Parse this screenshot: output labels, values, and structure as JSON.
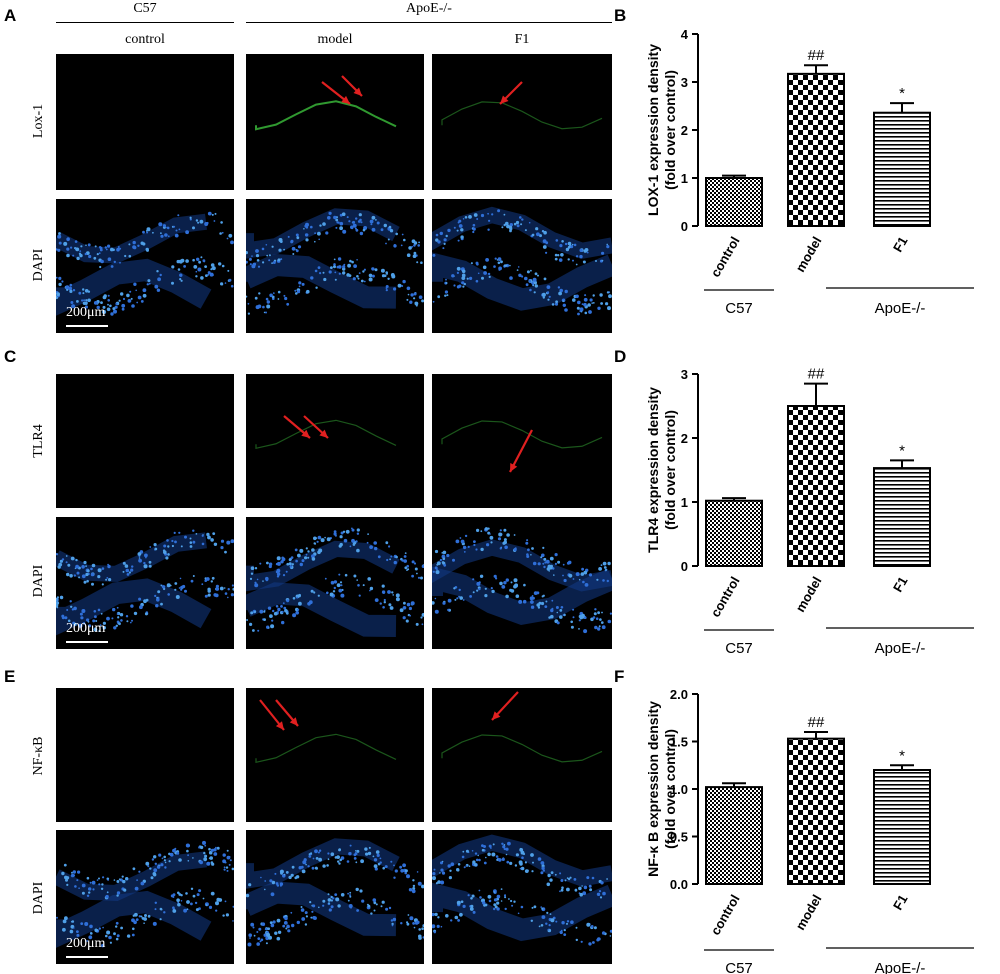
{
  "groups": {
    "c57": "C57",
    "apoe": "ApoE-/-",
    "control": "control",
    "model": "model",
    "f1": "F1"
  },
  "panels": {
    "A": "A",
    "B": "B",
    "C": "C",
    "D": "D",
    "E": "E",
    "F": "F"
  },
  "rows": {
    "lox1": "Lox-1",
    "tlr4": "TLR4",
    "nfkb": "NF-κB",
    "dapi": "DAPI"
  },
  "scale_label": "200μm",
  "colors": {
    "fluor_green": "#3cbf3c",
    "dapi_blue": "#2f6fd8",
    "arrow_red": "#e02020"
  },
  "chart_data": [
    {
      "type": "bar",
      "panel": "B",
      "categories": [
        "control",
        "model",
        "F1"
      ],
      "values": [
        1.0,
        3.17,
        2.36
      ],
      "errors": [
        0.05,
        0.18,
        0.2
      ],
      "annotations": [
        "",
        "##",
        "*"
      ],
      "ylabel": [
        "LOX-1 expression density",
        "(fold over control)"
      ],
      "ylim": [
        0,
        4
      ],
      "yticks": [
        "0",
        "1",
        "2",
        "3",
        "4"
      ],
      "ytick_values": [
        0,
        1,
        2,
        3,
        4
      ],
      "patterns": [
        "small-check",
        "large-check",
        "horizontal-lines"
      ],
      "group_labels": [
        "C57",
        "ApoE-/-"
      ]
    },
    {
      "type": "bar",
      "panel": "D",
      "categories": [
        "control",
        "model",
        "F1"
      ],
      "values": [
        1.02,
        2.5,
        1.53
      ],
      "errors": [
        0.04,
        0.35,
        0.12
      ],
      "annotations": [
        "",
        "##",
        "*"
      ],
      "ylabel": [
        "TLR4 expression density",
        "(fold over control)"
      ],
      "ylim": [
        0,
        3
      ],
      "yticks": [
        "0",
        "1",
        "2",
        "3"
      ],
      "ytick_values": [
        0,
        1,
        2,
        3
      ],
      "patterns": [
        "small-check",
        "large-check",
        "horizontal-lines"
      ],
      "group_labels": [
        "C57",
        "ApoE-/-"
      ]
    },
    {
      "type": "bar",
      "panel": "F",
      "categories": [
        "control",
        "model",
        "F1"
      ],
      "values": [
        1.02,
        1.53,
        1.2
      ],
      "errors": [
        0.04,
        0.07,
        0.05
      ],
      "annotations": [
        "",
        "##",
        "*"
      ],
      "ylabel": [
        "NF-κ B expression density",
        "(fold over control)"
      ],
      "ylim": [
        0,
        2.0
      ],
      "yticks": [
        "0.0",
        "0.5",
        "1.0",
        "1.5",
        "2.0"
      ],
      "ytick_values": [
        0,
        0.5,
        1.0,
        1.5,
        2.0
      ],
      "patterns": [
        "small-check",
        "large-check",
        "horizontal-lines"
      ],
      "group_labels": [
        "C57",
        "ApoE-/-"
      ]
    }
  ]
}
